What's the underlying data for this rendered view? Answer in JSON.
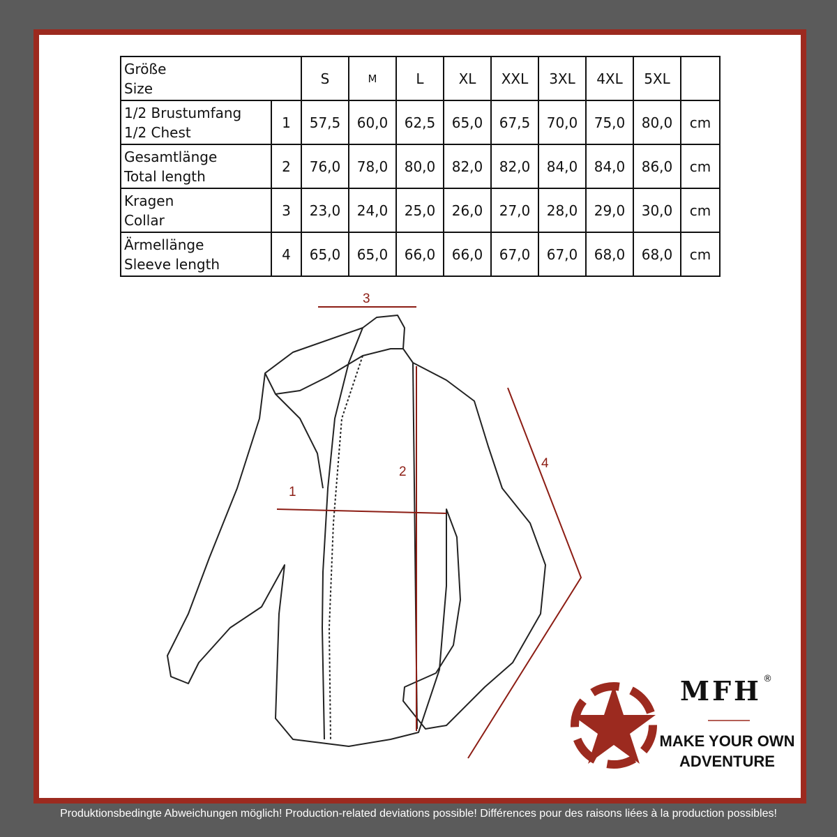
{
  "table": {
    "header": {
      "label_de": "Größe",
      "label_en": "Size",
      "sizes": [
        "S",
        "M",
        "L",
        "XL",
        "XXL",
        "3XL",
        "4XL",
        "5XL"
      ]
    },
    "rows": [
      {
        "de": "1/2 Brustumfang",
        "en": "1/2 Chest",
        "num": "1",
        "values": [
          "57,5",
          "60,0",
          "62,5",
          "65,0",
          "67,5",
          "70,0",
          "75,0",
          "80,0"
        ],
        "unit": "cm"
      },
      {
        "de": "Gesamtlänge",
        "en": "Total length",
        "num": "2",
        "values": [
          "76,0",
          "78,0",
          "80,0",
          "82,0",
          "82,0",
          "84,0",
          "84,0",
          "86,0"
        ],
        "unit": "cm"
      },
      {
        "de": "Kragen",
        "en": "Collar",
        "num": "3",
        "values": [
          "23,0",
          "24,0",
          "25,0",
          "26,0",
          "27,0",
          "28,0",
          "29,0",
          "30,0"
        ],
        "unit": "cm"
      },
      {
        "de": "Ärmellänge",
        "en": "Sleeve length",
        "num": "4",
        "values": [
          "65,0",
          "65,0",
          "66,0",
          "66,0",
          "67,0",
          "67,0",
          "68,0",
          "68,0"
        ],
        "unit": "cm"
      }
    ]
  },
  "diagram": {
    "markers": [
      "1",
      "2",
      "3",
      "4"
    ],
    "accent": "#8c1d14"
  },
  "logo": {
    "brand": "MFH",
    "reg": "®",
    "slogan_line1": "MAKE YOUR OWN",
    "slogan_line2": "ADVENTURE",
    "color": "#9c2a1f"
  },
  "footer": "Produktionsbedingte Abweichungen möglich! Production-related deviations possible! Différences pour des raisons liées à la production possibles!"
}
